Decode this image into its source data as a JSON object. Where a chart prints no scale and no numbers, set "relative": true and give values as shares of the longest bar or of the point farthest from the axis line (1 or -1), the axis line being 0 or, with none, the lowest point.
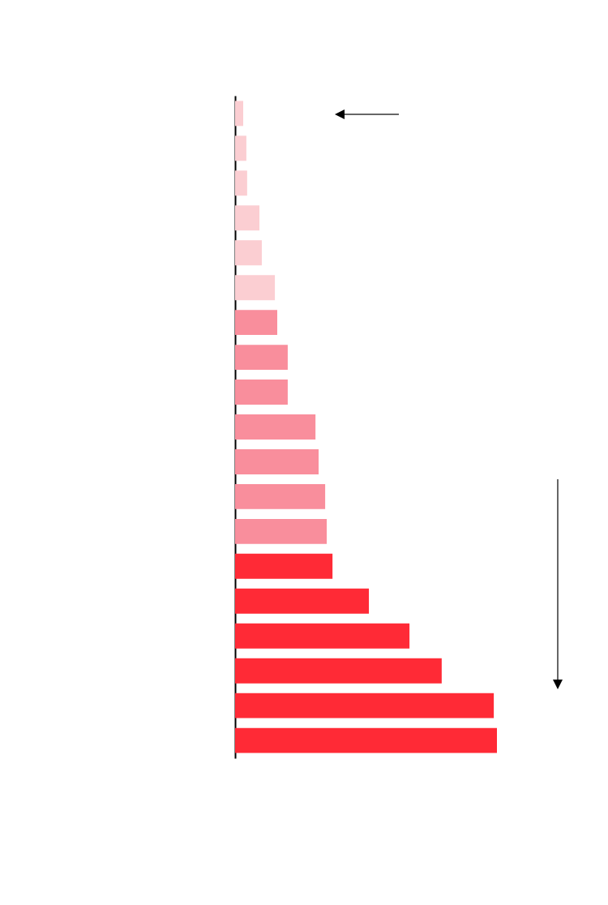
{
  "chart_data": {
    "type": "bar",
    "orientation": "horizontal",
    "relative": true,
    "categories": [
      null,
      null,
      null,
      null,
      null,
      null,
      null,
      null,
      null,
      null,
      null,
      null,
      null,
      null,
      null,
      null,
      null,
      null,
      null
    ],
    "values": [
      0.031,
      0.043,
      0.046,
      0.093,
      0.102,
      0.152,
      0.161,
      0.201,
      0.201,
      0.307,
      0.319,
      0.344,
      0.35,
      0.372,
      0.511,
      0.666,
      0.789,
      0.988,
      1
    ],
    "colors": [
      "#fbced2",
      "#fbced2",
      "#fbced2",
      "#fbced2",
      "#fbced2",
      "#fbced2",
      "#f98e9c",
      "#f98e9c",
      "#f98e9c",
      "#f98e9c",
      "#f98e9c",
      "#f98e9c",
      "#f98e9c",
      "#ff2a36",
      "#ff2a36",
      "#ff2a36",
      "#ff2a36",
      "#ff2a36",
      "#ff2a36"
    ]
  }
}
